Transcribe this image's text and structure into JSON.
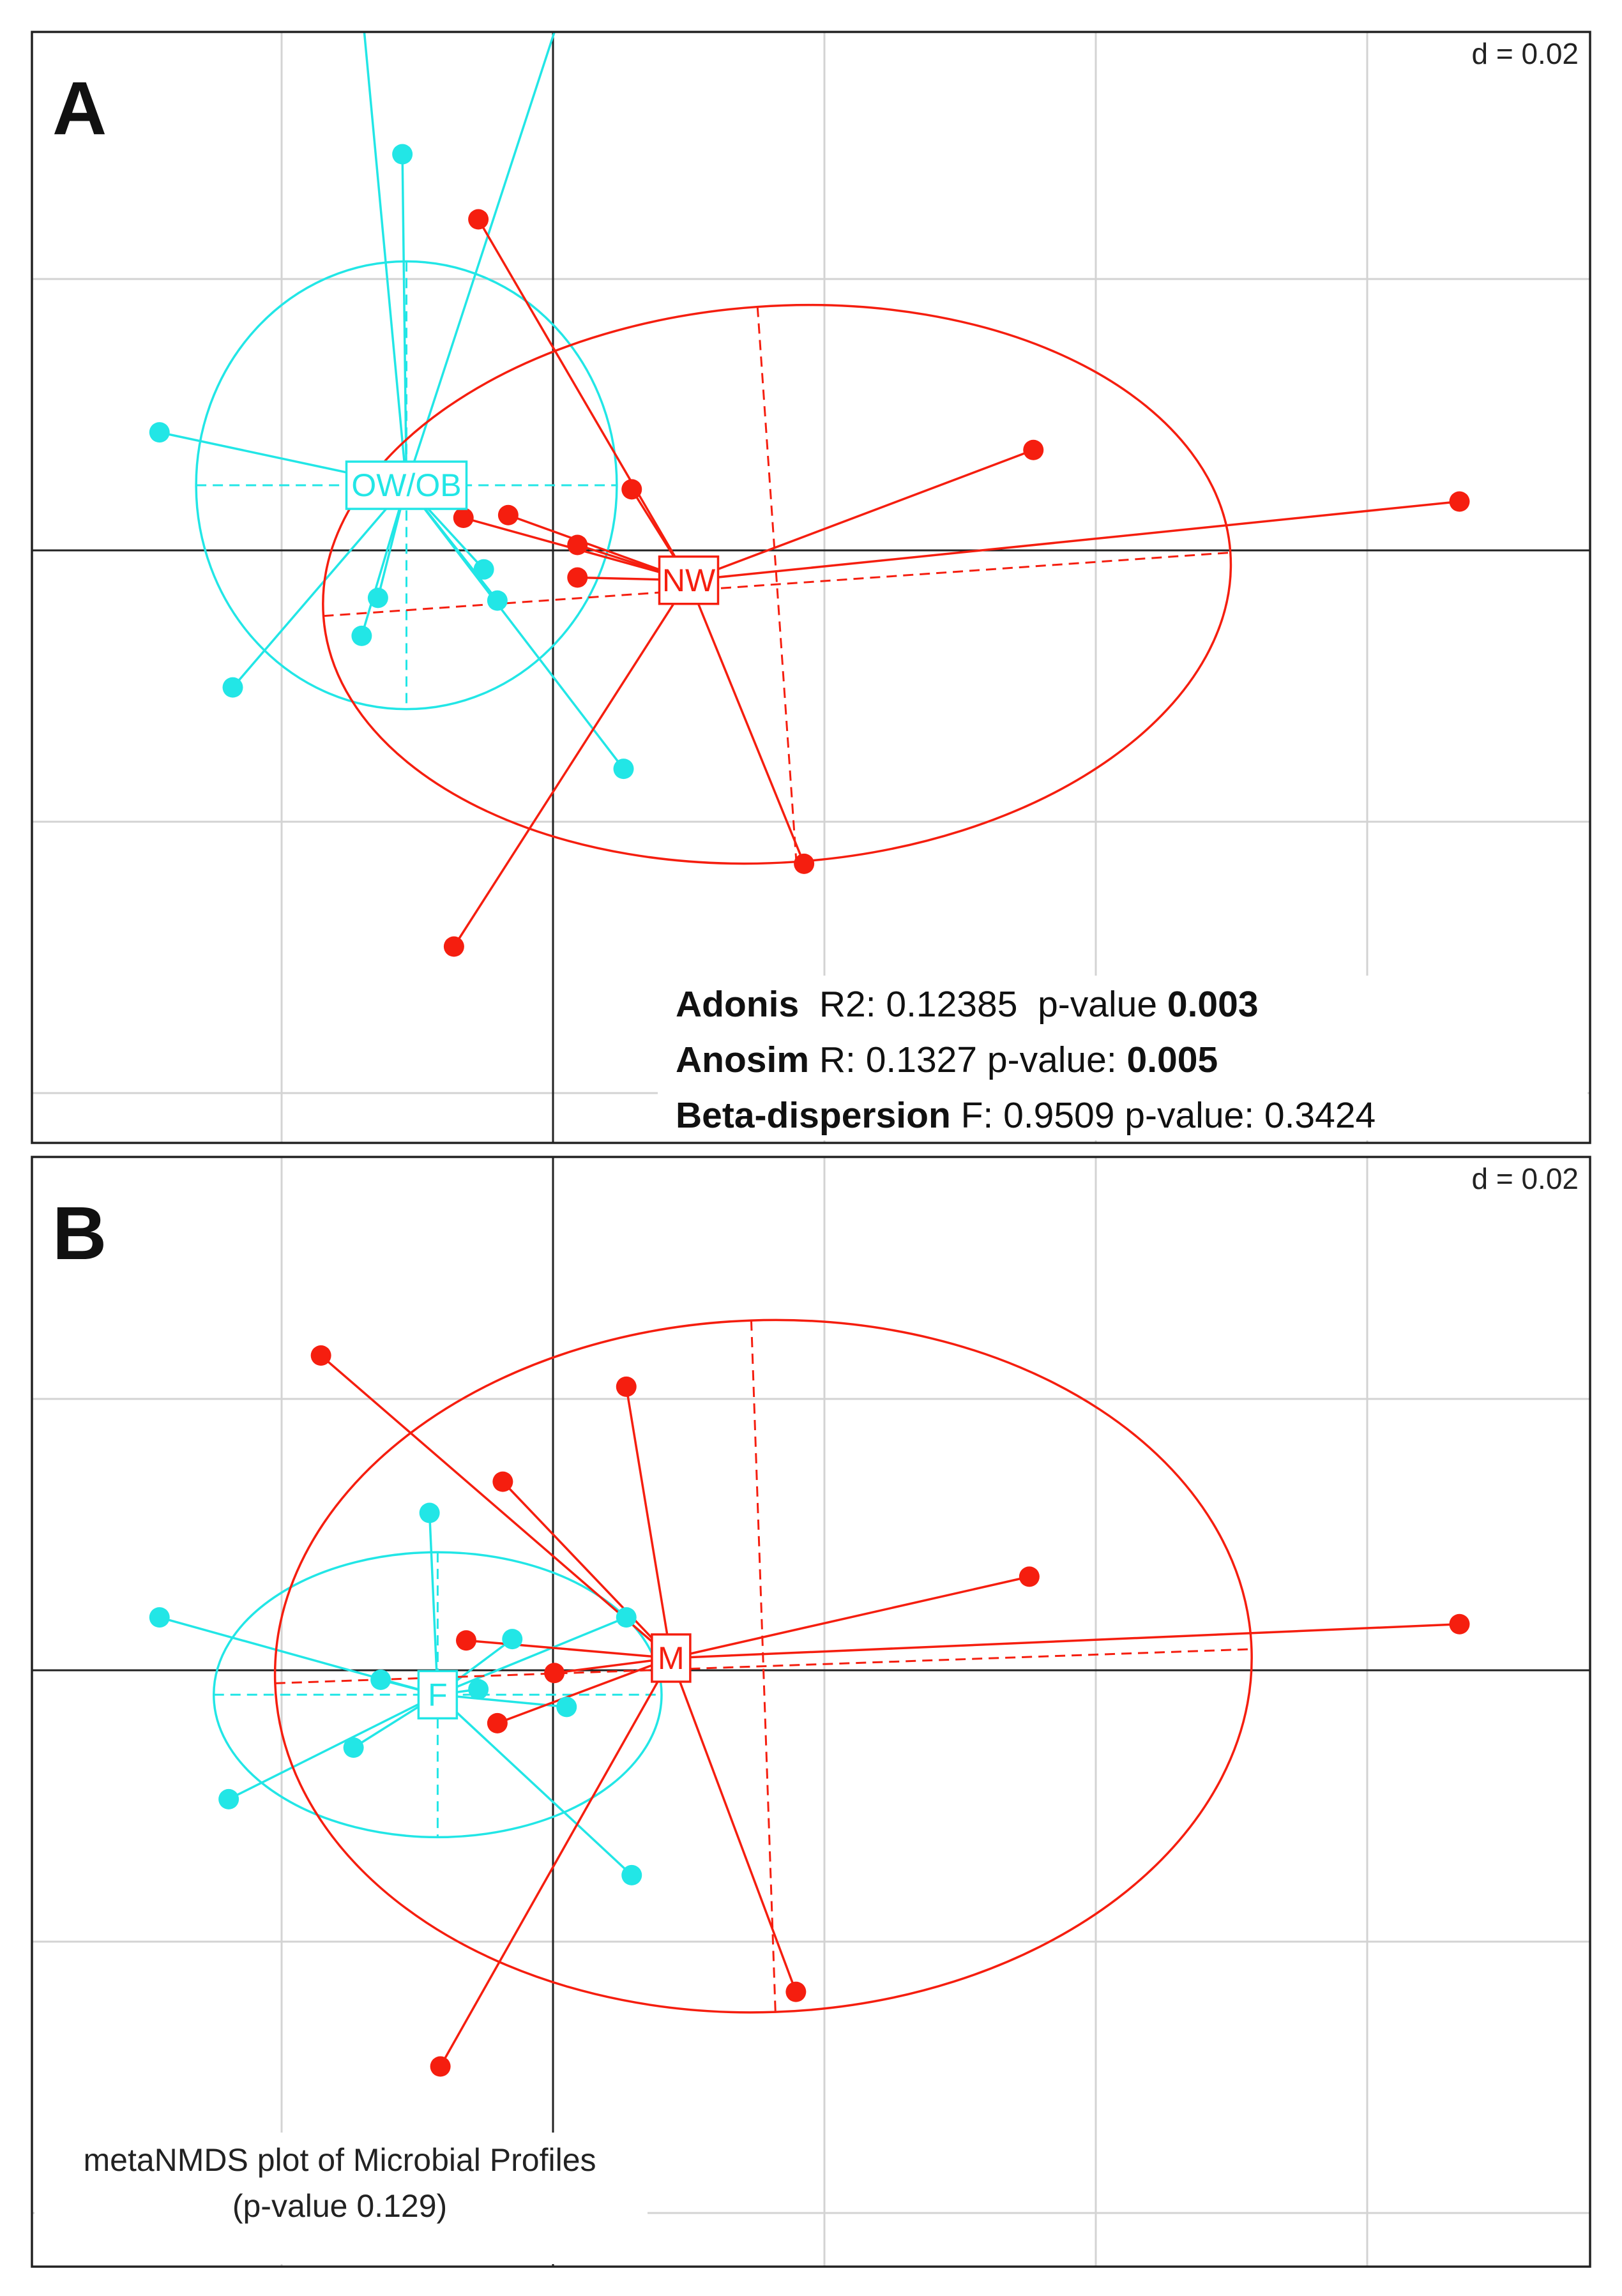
{
  "chart_data": [
    {
      "panel_label": "A",
      "type": "scatter",
      "scale_label": "d = 0.02",
      "xlim": [
        -0.1,
        0.19
      ],
      "ylim": [
        -0.1,
        0.1
      ],
      "grid_step": 0.02,
      "origin_lines": true,
      "groups": [
        {
          "name": "OW/OB",
          "color": "#22e6e6",
          "centroid": [
            -0.0108,
            0.0048
          ],
          "ellipse": {
            "cx": -0.0108,
            "cy": 0.0048,
            "rx": 0.0155,
            "ry": 0.0165,
            "angle": 0
          },
          "points": [
            [
              -0.0159,
              0.0596
            ],
            [
              0.0048,
              0.0526
            ],
            [
              -0.0111,
              0.0292
            ],
            [
              -0.029,
              0.0087
            ],
            [
              -0.0129,
              -0.0035
            ],
            [
              -0.0051,
              -0.0014
            ],
            [
              -0.0041,
              -0.0037
            ],
            [
              -0.0141,
              -0.0063
            ],
            [
              -0.0236,
              -0.0101
            ],
            [
              0.0052,
              -0.0161
            ]
          ]
        },
        {
          "name": "NW",
          "color": "#f51e0f",
          "centroid": [
            0.01,
            -0.0022
          ],
          "ellipse": {
            "cx": 0.0165,
            "cy": -0.0025,
            "rx": 0.0335,
            "ry": 0.0205,
            "angle": -4
          },
          "points": [
            [
              -0.0055,
              0.0244
            ],
            [
              0.0354,
              0.0074
            ],
            [
              0.0668,
              0.0036
            ],
            [
              0.0058,
              0.0045
            ],
            [
              -0.0066,
              0.0024
            ],
            [
              -0.0033,
              0.0026
            ],
            [
              0.0018,
              0.0004
            ],
            [
              0.0018,
              -0.002
            ],
            [
              0.0185,
              -0.0231
            ],
            [
              -0.0073,
              -0.0292
            ]
          ]
        }
      ],
      "annotations": {
        "stats": [
          {
            "label": "Adonis",
            "text": "  R2: 0.12385  p-value ",
            "value": "0.003"
          },
          {
            "label": "Anosim",
            "text": " R: 0.1327 p-value: ",
            "value": "0.005"
          },
          {
            "label": "Beta-dispersion",
            "text": " F: 0.9509 p-value: 0.3424",
            "value": ""
          }
        ]
      }
    },
    {
      "panel_label": "B",
      "type": "scatter",
      "scale_label": "d = 0.02",
      "xlim": [
        -0.1,
        0.19
      ],
      "ylim": [
        -0.1,
        0.1
      ],
      "grid_step": 0.02,
      "origin_lines": true,
      "groups": [
        {
          "name": "F",
          "color": "#22e6e6",
          "centroid": [
            -0.0085,
            -0.0018
          ],
          "ellipse": {
            "cx": -0.0085,
            "cy": -0.0018,
            "rx": 0.0165,
            "ry": 0.0105,
            "angle": 0
          },
          "points": [
            [
              -0.0091,
              0.0116
            ],
            [
              0.0054,
              0.0039
            ],
            [
              -0.029,
              0.0039
            ],
            [
              -0.003,
              0.0023
            ],
            [
              -0.0127,
              -0.0007
            ],
            [
              -0.0055,
              -0.0014
            ],
            [
              0.001,
              -0.0027
            ],
            [
              -0.0147,
              -0.0057
            ],
            [
              -0.0239,
              -0.0095
            ],
            [
              0.0058,
              -0.0151
            ]
          ]
        },
        {
          "name": "M",
          "color": "#f51e0f",
          "centroid": [
            0.0087,
            0.0009
          ],
          "ellipse": {
            "cx": 0.0155,
            "cy": 0.0003,
            "rx": 0.036,
            "ry": 0.0255,
            "angle": -2
          },
          "points": [
            [
              -0.0171,
              0.0232
            ],
            [
              0.0054,
              0.0209
            ],
            [
              -0.0037,
              0.0139
            ],
            [
              0.0351,
              0.0069
            ],
            [
              0.0668,
              0.0034
            ],
            [
              -0.0064,
              0.0022
            ],
            [
              0.0001,
              -0.0002
            ],
            [
              -0.0041,
              -0.0039
            ],
            [
              0.0179,
              -0.0237
            ],
            [
              -0.0083,
              -0.0292
            ]
          ]
        }
      ],
      "annotations": {
        "caption_lines": [
          "metaNMDS plot of Microbial Profiles",
          "(p-value 0.129)"
        ]
      }
    }
  ]
}
